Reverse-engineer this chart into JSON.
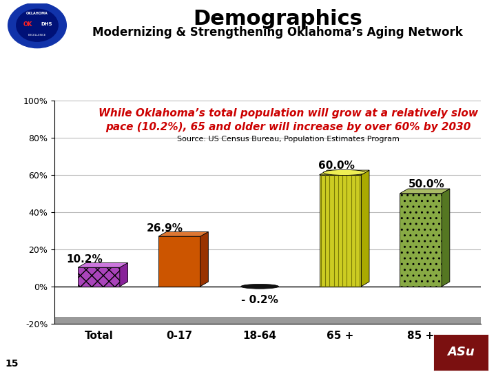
{
  "title": "Demographics",
  "subtitle": "Modernizing & Strengthening Oklahoma’s Aging Network",
  "categories": [
    "Total",
    "0-17",
    "18-64",
    "65 +",
    "85 +"
  ],
  "values": [
    10.2,
    26.9,
    -0.2,
    60.0,
    50.0
  ],
  "value_labels": [
    "10.2%",
    "26.9%",
    "- 0.2%",
    "60.0%",
    "50.0%"
  ],
  "bar_face_colors": [
    "#AA44BB",
    "#CC5500",
    "#111111",
    "#CCCC22",
    "#88AA44"
  ],
  "bar_right_colors": [
    "#882299",
    "#993300",
    "#000000",
    "#AAAA00",
    "#557722"
  ],
  "bar_top_colors": [
    "#CC77DD",
    "#DD7733",
    "#333333",
    "#EEEE55",
    "#AABB66"
  ],
  "ylim": [
    -20,
    100
  ],
  "yticks": [
    -20,
    0,
    20,
    40,
    60,
    80,
    100
  ],
  "ytick_labels": [
    "-20%",
    "0%",
    "20%",
    "40%",
    "60%",
    "80%",
    "100%"
  ],
  "annotation_line1": "While Oklahoma’s total population will grow at a relatively slow",
  "annotation_line2": "pace (10.2%), 65 and older will increase by over 60% by 2030",
  "source_text": "Source: US Census Bureau, Population Estimates Program",
  "bg_color": "#ffffff",
  "fig_bg_color": "#ffffff",
  "title_fontsize": 22,
  "subtitle_fontsize": 12,
  "annotation_color": "#CC0000",
  "annotation_fontsize": 11,
  "source_fontsize": 8,
  "label_fontsize": 11,
  "axis_label_fontsize": 11,
  "number_15": "15",
  "floor_color": "#999999",
  "grid_color": "#bbbbbb"
}
